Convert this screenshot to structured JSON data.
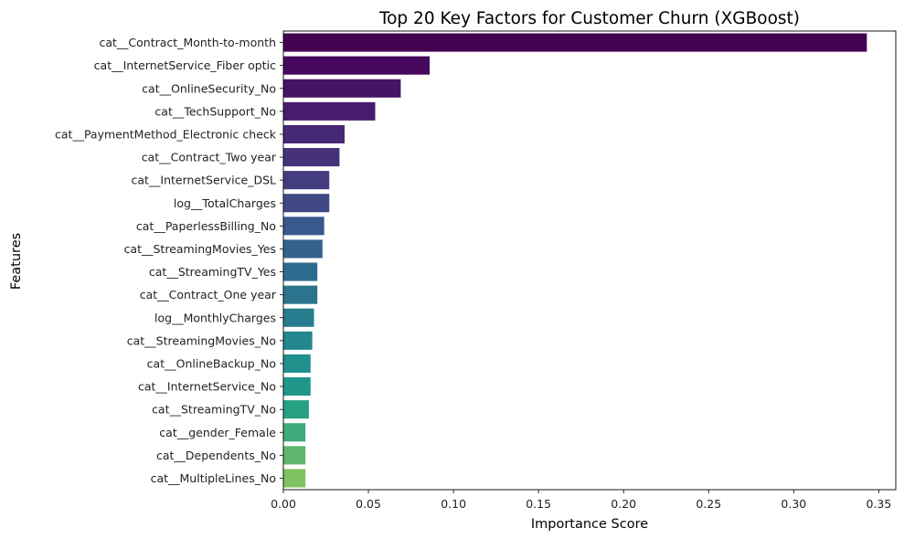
{
  "chart_data": {
    "type": "bar",
    "orientation": "horizontal",
    "title": "Top 20 Key Factors for Customer Churn (XGBoost)",
    "xlabel": "Importance Score",
    "ylabel": "Features",
    "xlim": [
      0,
      0.36
    ],
    "xticks": [
      0.0,
      0.05,
      0.1,
      0.15,
      0.2,
      0.25,
      0.3,
      0.35
    ],
    "xtick_labels": [
      "0.00",
      "0.05",
      "0.10",
      "0.15",
      "0.20",
      "0.25",
      "0.30",
      "0.35"
    ],
    "grid": false,
    "palette": "viridis",
    "categories": [
      "cat__Contract_Month-to-month",
      "cat__InternetService_Fiber optic",
      "cat__OnlineSecurity_No",
      "cat__TechSupport_No",
      "cat__PaymentMethod_Electronic check",
      "cat__Contract_Two year",
      "cat__InternetService_DSL",
      "log__TotalCharges",
      "cat__PaperlessBilling_No",
      "cat__StreamingMovies_Yes",
      "cat__StreamingTV_Yes",
      "cat__Contract_One year",
      "log__MonthlyCharges",
      "cat__StreamingMovies_No",
      "cat__OnlineBackup_No",
      "cat__InternetService_No",
      "cat__StreamingTV_No",
      "cat__gender_Female",
      "cat__Dependents_No",
      "cat__MultipleLines_No"
    ],
    "values": [
      0.343,
      0.086,
      0.069,
      0.054,
      0.036,
      0.033,
      0.027,
      0.027,
      0.024,
      0.023,
      0.02,
      0.02,
      0.018,
      0.017,
      0.016,
      0.016,
      0.015,
      0.013,
      0.013,
      0.013
    ],
    "colors": [
      "#440154",
      "#481a6c",
      "#472f7d",
      "#414487",
      "#39568c",
      "#31688e",
      "#2a788e",
      "#23888e",
      "#1f988b",
      "#22a884",
      "#35b779",
      "#54c568",
      "#7ad151",
      "#a5db36",
      "#d2e21b",
      "#fde725",
      "#482173",
      "#3e4a89",
      "#26828e",
      "#bddf26"
    ]
  }
}
